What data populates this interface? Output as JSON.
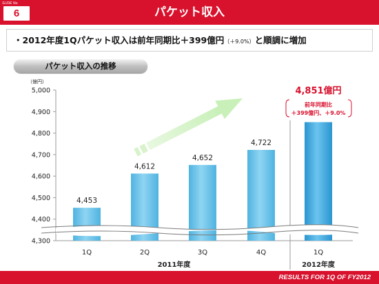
{
  "header": {
    "slide_label": "SLIDE No.",
    "slide_number": "6",
    "title": "パケット収入"
  },
  "bullet": {
    "mark": "・",
    "text_main": "2012年度1Qパケット収入は前年同期比＋399億円",
    "text_small": "（＋9.0%）",
    "text_tail": "と順調に増加"
  },
  "section_title": "パケット収入の推移",
  "chart_data": {
    "type": "bar",
    "unit_label": "（億円）",
    "categories": [
      "1Q",
      "2Q",
      "3Q",
      "4Q",
      "1Q"
    ],
    "values": [
      4453,
      4612,
      4652,
      4722,
      4851
    ],
    "value_labels": [
      "4,453",
      "4,612",
      "4,652",
      "4,722",
      "4,851億円"
    ],
    "ylim": [
      4300,
      5000
    ],
    "yticks": [
      4300,
      4400,
      4500,
      4600,
      4700,
      4800,
      4900,
      5000
    ],
    "ytick_labels": [
      "4,300",
      "4,400",
      "4,500",
      "4,600",
      "4,700",
      "4,800",
      "4,900",
      "5,000"
    ],
    "groups": [
      {
        "label": "2011年度",
        "from": 0,
        "to": 3
      },
      {
        "label": "2012年度",
        "from": 4,
        "to": 4
      }
    ],
    "annotation": {
      "line1": "前年同期比",
      "line2": "＋399億円、＋9.0%"
    },
    "axis_break": true,
    "grid": false,
    "colors": {
      "bar": "#4fb3e0",
      "bar_highlight": "#2a95d0",
      "highlight_label": "#d8112d",
      "arrow": "#c8f0b8"
    }
  },
  "footer": {
    "text": "RESULTS FOR 1Q OF FY2012"
  }
}
